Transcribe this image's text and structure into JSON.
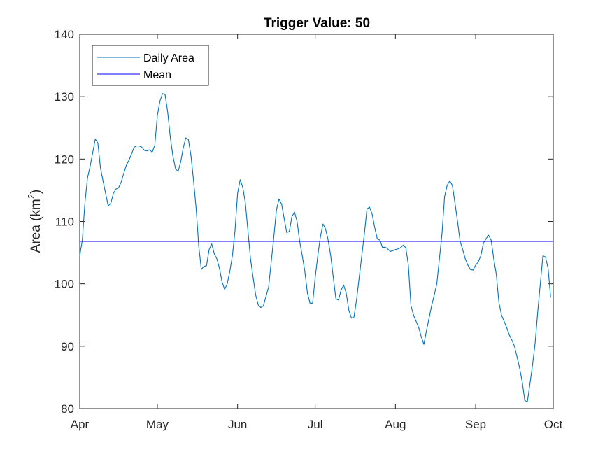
{
  "chart_data": {
    "type": "line",
    "title": "Trigger Value: 50",
    "xlabel": "",
    "ylabel": "Area (km",
    "ylabel_superscript": "2",
    "ylabel_suffix": ")",
    "x_ticks": [
      {
        "label": "Apr",
        "day": 0
      },
      {
        "label": "May",
        "day": 30
      },
      {
        "label": "Jun",
        "day": 61
      },
      {
        "label": "Jul",
        "day": 91
      },
      {
        "label": "Aug",
        "day": 122
      },
      {
        "label": "Sep",
        "day": 153
      },
      {
        "label": "Oct",
        "day": 183
      }
    ],
    "xlim": [
      "Apr 1",
      "Oct 1"
    ],
    "ylim": [
      80,
      140
    ],
    "y_ticks": [
      80,
      90,
      100,
      110,
      120,
      130,
      140
    ],
    "grid": false,
    "legend_position": "top-left",
    "series": [
      {
        "name": "Daily Area",
        "color": "#0072bd",
        "points": [
          [
            0,
            104.5
          ],
          [
            1,
            107
          ],
          [
            2,
            113
          ],
          [
            3,
            117
          ],
          [
            4,
            118.8
          ],
          [
            5,
            121
          ],
          [
            6,
            123.2
          ],
          [
            7,
            122.6
          ],
          [
            8,
            118.6
          ],
          [
            9,
            116.5
          ],
          [
            10,
            114.5
          ],
          [
            11,
            112.5
          ],
          [
            12,
            112.9
          ],
          [
            13,
            114.5
          ],
          [
            14,
            115.2
          ],
          [
            15,
            115.4
          ],
          [
            16,
            116.3
          ],
          [
            17,
            117.7
          ],
          [
            18,
            119
          ],
          [
            19,
            119.8
          ],
          [
            20,
            120.8
          ],
          [
            21,
            121.9
          ],
          [
            22,
            122.1
          ],
          [
            23,
            122.1
          ],
          [
            24,
            121.9
          ],
          [
            25,
            121.4
          ],
          [
            26,
            121.3
          ],
          [
            27,
            121.5
          ],
          [
            28,
            121.1
          ],
          [
            29,
            122.2
          ],
          [
            30,
            127
          ],
          [
            31,
            129.3
          ],
          [
            32,
            130.5
          ],
          [
            33,
            130.3
          ],
          [
            34,
            127.5
          ],
          [
            35,
            123.5
          ],
          [
            36,
            120.5
          ],
          [
            37,
            118.5
          ],
          [
            38,
            118
          ],
          [
            39,
            119.5
          ],
          [
            40,
            121.8
          ],
          [
            41,
            123.4
          ],
          [
            42,
            123.1
          ],
          [
            43,
            120.5
          ],
          [
            44,
            116.5
          ],
          [
            45,
            112
          ],
          [
            46,
            106
          ],
          [
            47,
            102.3
          ],
          [
            48,
            102.8
          ],
          [
            49,
            102.9
          ],
          [
            50,
            105.5
          ],
          [
            51,
            106.4
          ],
          [
            52,
            104.8
          ],
          [
            53,
            104
          ],
          [
            54,
            102.5
          ],
          [
            55,
            100.3
          ],
          [
            56,
            99.1
          ],
          [
            57,
            100
          ],
          [
            58,
            102
          ],
          [
            59,
            104.5
          ],
          [
            60,
            108.5
          ],
          [
            61,
            114.5
          ],
          [
            62,
            116.7
          ],
          [
            63,
            115.5
          ],
          [
            64,
            113
          ],
          [
            65,
            108.5
          ],
          [
            66,
            104
          ],
          [
            67,
            101
          ],
          [
            68,
            98.2
          ],
          [
            69,
            96.6
          ],
          [
            70,
            96.2
          ],
          [
            71,
            96.5
          ],
          [
            72,
            98
          ],
          [
            73,
            99.5
          ],
          [
            74,
            103.5
          ],
          [
            75,
            107.5
          ],
          [
            76,
            111.8
          ],
          [
            77,
            113.6
          ],
          [
            78,
            112.8
          ],
          [
            79,
            110.5
          ],
          [
            80,
            108.2
          ],
          [
            81,
            108.4
          ],
          [
            82,
            110.8
          ],
          [
            83,
            111.5
          ],
          [
            84,
            110
          ],
          [
            85,
            106.8
          ],
          [
            86,
            104.5
          ],
          [
            87,
            102
          ],
          [
            88,
            98.5
          ],
          [
            89,
            96.9
          ],
          [
            90,
            96.9
          ],
          [
            91,
            101
          ],
          [
            92,
            104.5
          ],
          [
            93,
            107.5
          ],
          [
            94,
            109.6
          ],
          [
            95,
            108.8
          ],
          [
            96,
            107
          ],
          [
            97,
            104.5
          ],
          [
            98,
            101
          ],
          [
            99,
            97.6
          ],
          [
            100,
            97.4
          ],
          [
            101,
            99
          ],
          [
            102,
            99.8
          ],
          [
            103,
            98.5
          ],
          [
            104,
            95.8
          ],
          [
            105,
            94.5
          ],
          [
            106,
            94.7
          ],
          [
            107,
            97.5
          ],
          [
            108,
            101
          ],
          [
            109,
            104.5
          ],
          [
            110,
            108
          ],
          [
            111,
            112
          ],
          [
            112,
            112.3
          ],
          [
            113,
            111.2
          ],
          [
            114,
            109
          ],
          [
            115,
            107.2
          ],
          [
            116,
            107
          ],
          [
            117,
            105.8
          ],
          [
            118,
            105.9
          ],
          [
            119,
            105.6
          ],
          [
            120,
            105.2
          ],
          [
            121,
            105.3
          ],
          [
            122,
            105.5
          ],
          [
            123,
            105.6
          ],
          [
            124,
            105.8
          ],
          [
            125,
            106.2
          ],
          [
            126,
            105.8
          ],
          [
            127,
            103
          ],
          [
            128,
            96.5
          ],
          [
            129,
            95
          ],
          [
            130,
            94
          ],
          [
            131,
            93
          ],
          [
            132,
            91.5
          ],
          [
            133,
            90.3
          ],
          [
            134,
            92.5
          ],
          [
            135,
            94.5
          ],
          [
            136,
            96.5
          ],
          [
            137,
            98.2
          ],
          [
            138,
            100
          ],
          [
            139,
            104
          ],
          [
            140,
            108
          ],
          [
            141,
            114
          ],
          [
            142,
            115.8
          ],
          [
            143,
            116.5
          ],
          [
            144,
            115.8
          ],
          [
            145,
            113
          ],
          [
            146,
            110
          ],
          [
            147,
            106.8
          ],
          [
            148,
            105.5
          ],
          [
            149,
            104
          ],
          [
            150,
            103
          ],
          [
            151,
            102.3
          ],
          [
            152,
            102.2
          ],
          [
            153,
            103
          ],
          [
            154,
            103.5
          ],
          [
            155,
            104.5
          ],
          [
            156,
            106.5
          ],
          [
            157,
            107.2
          ],
          [
            158,
            107.8
          ],
          [
            159,
            107
          ],
          [
            160,
            104
          ],
          [
            161,
            101.5
          ],
          [
            162,
            97
          ],
          [
            163,
            95
          ],
          [
            164,
            94
          ],
          [
            165,
            93
          ],
          [
            166,
            91.8
          ],
          [
            167,
            91
          ],
          [
            168,
            90
          ],
          [
            169,
            88.3
          ],
          [
            170,
            86.5
          ],
          [
            171,
            84.3
          ],
          [
            172,
            81.3
          ],
          [
            173,
            81.1
          ],
          [
            174,
            84
          ],
          [
            175,
            87
          ],
          [
            176,
            90.5
          ],
          [
            177,
            95.5
          ],
          [
            178,
            100
          ],
          [
            179,
            104.5
          ],
          [
            180,
            104.3
          ],
          [
            181,
            102.5
          ],
          [
            182,
            97.8
          ]
        ]
      },
      {
        "name": "Mean",
        "color": "#0000ff",
        "value": 106.8
      }
    ]
  }
}
